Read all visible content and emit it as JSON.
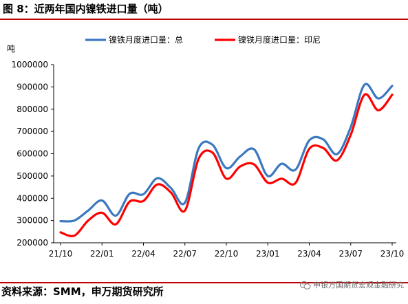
{
  "header": {
    "title": "图 8：近两年国内镍铁进口量（吨）"
  },
  "footer": {
    "source": "资料来源：SMM，申万期货研究所",
    "watermark": "申银万国期货宏观金融研究",
    "watermark_icon": "wechat-icon"
  },
  "colors": {
    "series_total": "#3a78c0",
    "series_indonesia": "#ff0000",
    "axis": "#000000",
    "rule": "#c00000"
  },
  "chart_data": {
    "type": "line",
    "unit_label": "吨",
    "ylim": [
      200000,
      1000000
    ],
    "y_ticks": [
      "1000000",
      "900000",
      "800000",
      "700000",
      "600000",
      "500000",
      "400000",
      "300000",
      "200000"
    ],
    "x_tick_labels": [
      "21/10",
      "22/01",
      "22/04",
      "22/07",
      "22/10",
      "23/01",
      "23/04",
      "23/07",
      "23/10"
    ],
    "grid": false,
    "legend_position": "top",
    "x": [
      "21/10",
      "21/11",
      "21/12",
      "22/01",
      "22/02",
      "22/03",
      "22/04",
      "22/05",
      "22/06",
      "22/07",
      "22/08",
      "22/09",
      "22/10",
      "22/11",
      "22/12",
      "23/01",
      "23/02",
      "23/03",
      "23/04",
      "23/05",
      "23/06",
      "23/07",
      "23/08",
      "23/09",
      "23/10"
    ],
    "series": [
      {
        "name": "镍铁月度进口量：总",
        "values": [
          297000,
          300000,
          345000,
          390000,
          322000,
          420000,
          418000,
          490000,
          445000,
          380000,
          625000,
          640000,
          535000,
          588000,
          620000,
          500000,
          555000,
          528000,
          660000,
          665000,
          598000,
          720000,
          910000,
          848000,
          905000
        ]
      },
      {
        "name": "镍铁月度进口量：印尼",
        "values": [
          247000,
          232000,
          300000,
          335000,
          283000,
          385000,
          388000,
          462000,
          425000,
          345000,
          578000,
          605000,
          488000,
          543000,
          552000,
          470000,
          488000,
          468000,
          622000,
          626000,
          570000,
          685000,
          865000,
          795000,
          865000
        ]
      }
    ]
  }
}
